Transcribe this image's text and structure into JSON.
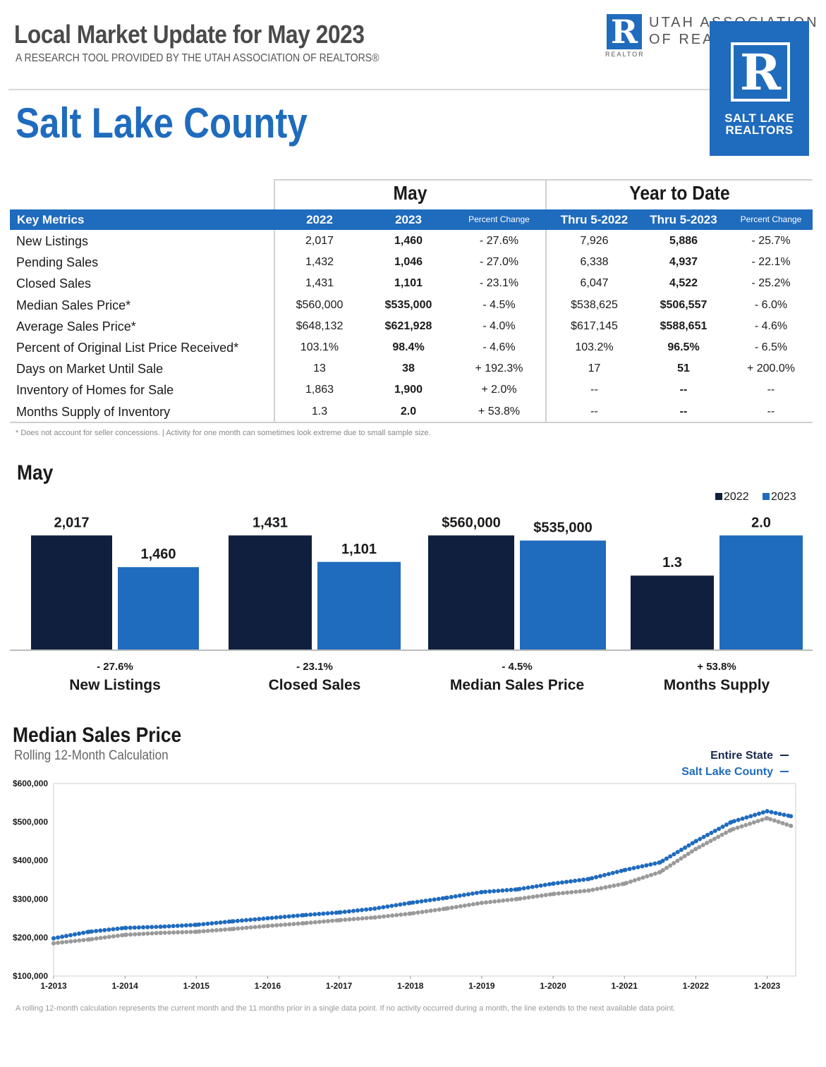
{
  "header": {
    "title": "Local Market Update for May 2023",
    "subtitle": "A RESEARCH TOOL PROVIDED BY THE UTAH ASSOCIATION OF REALTORS®",
    "county": "Salt Lake County",
    "association_logo": {
      "line1": "UTAH ASSOCIATION",
      "line2": "OF REA",
      "mark_letter": "R",
      "mark_caption": "REALTOR"
    },
    "board_logo": {
      "mark_letter": "R",
      "line1": "SALT LAKE",
      "line2": "REALTORS"
    }
  },
  "colors": {
    "brand_blue": "#1f6bbd",
    "navy": "#0f1f3d",
    "state_gray": "#9a9a9a"
  },
  "metrics_table": {
    "group_may": "May",
    "group_ytd": "Year to Date",
    "columns": [
      "Key Metrics",
      "2022",
      "2023",
      "Percent Change",
      "Thru 5-2022",
      "Thru 5-2023",
      "Percent Change"
    ],
    "rows": [
      {
        "metric": "New Listings",
        "m2022": "2,017",
        "m2023": "1,460",
        "mchg": "- 27.6%",
        "y2022": "7,926",
        "y2023": "5,886",
        "ychg": "- 25.7%"
      },
      {
        "metric": "Pending Sales",
        "m2022": "1,432",
        "m2023": "1,046",
        "mchg": "- 27.0%",
        "y2022": "6,338",
        "y2023": "4,937",
        "ychg": "- 22.1%"
      },
      {
        "metric": "Closed Sales",
        "m2022": "1,431",
        "m2023": "1,101",
        "mchg": "- 23.1%",
        "y2022": "6,047",
        "y2023": "4,522",
        "ychg": "- 25.2%"
      },
      {
        "metric": "Median Sales Price*",
        "m2022": "$560,000",
        "m2023": "$535,000",
        "mchg": "- 4.5%",
        "y2022": "$538,625",
        "y2023": "$506,557",
        "ychg": "- 6.0%"
      },
      {
        "metric": "Average Sales Price*",
        "m2022": "$648,132",
        "m2023": "$621,928",
        "mchg": "- 4.0%",
        "y2022": "$617,145",
        "y2023": "$588,651",
        "ychg": "- 4.6%"
      },
      {
        "metric": "Percent of Original List Price Received*",
        "m2022": "103.1%",
        "m2023": "98.4%",
        "mchg": "- 4.6%",
        "y2022": "103.2%",
        "y2023": "96.5%",
        "ychg": "- 6.5%"
      },
      {
        "metric": "Days on Market Until Sale",
        "m2022": "13",
        "m2023": "38",
        "mchg": "+ 192.3%",
        "y2022": "17",
        "y2023": "51",
        "ychg": "+ 200.0%"
      },
      {
        "metric": "Inventory of Homes for Sale",
        "m2022": "1,863",
        "m2023": "1,900",
        "mchg": "+ 2.0%",
        "y2022": "--",
        "y2023": "--",
        "ychg": "--"
      },
      {
        "metric": "Months Supply of Inventory",
        "m2022": "1.3",
        "m2023": "2.0",
        "mchg": "+ 53.8%",
        "y2022": "--",
        "y2023": "--",
        "ychg": "--"
      }
    ],
    "footnote": "* Does not account for seller concessions.  |  Activity for one month can sometimes look extreme due to small sample size."
  },
  "bar_section_title": "May",
  "line_section": {
    "title": "Median Sales Price",
    "subtitle": "Rolling 12-Month Calculation",
    "footnote": "A rolling 12-month calculation represents the current month and the 11 months prior in a single data point. If no activity occurred during a month, the line extends to the next available data point."
  },
  "chart_data": [
    {
      "type": "bar",
      "legend": [
        "2022",
        "2023"
      ],
      "legend_placement": "top-right",
      "groups": [
        {
          "name": "New Listings",
          "change": "- 27.6%",
          "values": [
            2017,
            1460
          ],
          "labels": [
            "2,017",
            "1,460"
          ]
        },
        {
          "name": "Closed Sales",
          "change": "- 23.1%",
          "values": [
            1431,
            1101
          ],
          "labels": [
            "1,431",
            "1,101"
          ]
        },
        {
          "name": "Median Sales Price",
          "change": "- 4.5%",
          "values": [
            560000,
            535000
          ],
          "labels": [
            "$560,000",
            "$535,000"
          ]
        },
        {
          "name": "Months Supply",
          "change": "+ 53.8%",
          "values": [
            1.3,
            2.0
          ],
          "labels": [
            "1.3",
            "2.0"
          ]
        }
      ]
    },
    {
      "type": "line",
      "x_ticks": [
        "1-2013",
        "1-2014",
        "1-2015",
        "1-2016",
        "1-2017",
        "1-2018",
        "1-2019",
        "1-2020",
        "1-2021",
        "1-2022",
        "1-2023"
      ],
      "y_ticks": [
        "$600,000",
        "$500,000",
        "$400,000",
        "$300,000",
        "$200,000",
        "$100,000"
      ],
      "ylim": [
        100000,
        600000
      ],
      "legend_placement": "top-right",
      "series": [
        {
          "name": "Entire State",
          "color": "#9a9a9a",
          "x": [
            "1-2013",
            "7-2013",
            "1-2014",
            "7-2014",
            "1-2015",
            "7-2015",
            "1-2016",
            "7-2016",
            "1-2017",
            "7-2017",
            "1-2018",
            "7-2018",
            "1-2019",
            "7-2019",
            "1-2020",
            "7-2020",
            "1-2021",
            "7-2021",
            "1-2022",
            "7-2022",
            "1-2023",
            "5-2023"
          ],
          "values": [
            185000,
            195000,
            207000,
            212000,
            215000,
            222000,
            230000,
            237000,
            245000,
            252000,
            262000,
            275000,
            290000,
            300000,
            313000,
            322000,
            340000,
            370000,
            430000,
            480000,
            510000,
            490000
          ]
        },
        {
          "name": "Salt Lake County",
          "color": "#1f6bbd",
          "x": [
            "1-2013",
            "7-2013",
            "1-2014",
            "7-2014",
            "1-2015",
            "7-2015",
            "1-2016",
            "7-2016",
            "1-2017",
            "7-2017",
            "1-2018",
            "7-2018",
            "1-2019",
            "7-2019",
            "1-2020",
            "7-2020",
            "1-2021",
            "7-2021",
            "1-2022",
            "7-2022",
            "1-2023",
            "5-2023"
          ],
          "values": [
            198000,
            215000,
            225000,
            228000,
            233000,
            242000,
            250000,
            258000,
            265000,
            275000,
            290000,
            303000,
            318000,
            325000,
            340000,
            352000,
            375000,
            395000,
            450000,
            500000,
            528000,
            515000
          ]
        }
      ]
    }
  ]
}
